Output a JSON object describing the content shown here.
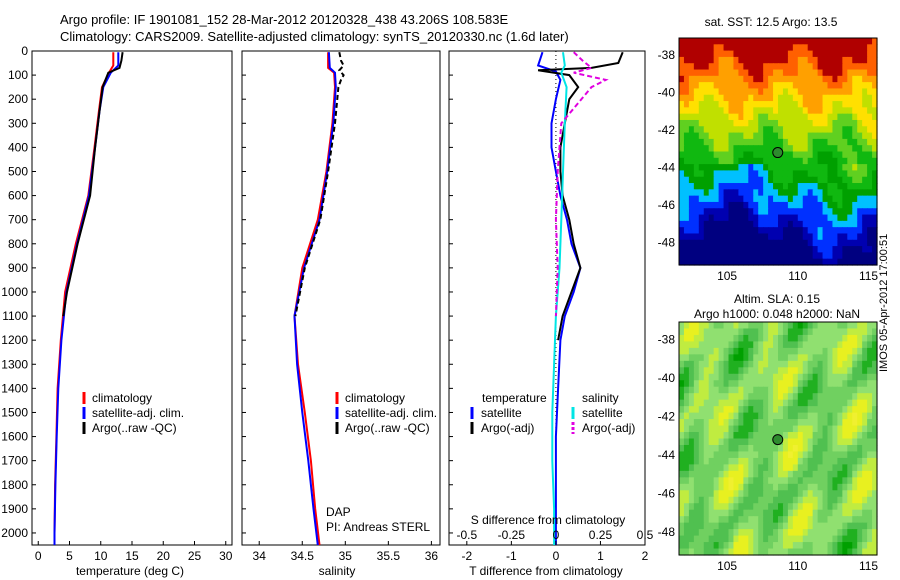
{
  "header": {
    "line1": "Argo profile: IF 1901081_152 28-Mar-2012 20120328_438 43.206S 108.583E",
    "line2": "Climatology: CARS2009. Satellite-adjusted climatology: synTS_20120330.nc (1.6d later)"
  },
  "colors": {
    "climatology": "#ff0000",
    "satellite": "#0000ff",
    "argo": "#000000",
    "s_satellite": "#00e5e5",
    "s_argo": "#e000e0"
  },
  "chart_data": [
    {
      "type": "line",
      "id": "temperature",
      "xlabel": "temperature (deg C)",
      "ylabel": "",
      "xlim": [
        -1,
        31
      ],
      "ylim": [
        2050,
        0
      ],
      "xticks": [
        "0",
        "5",
        "10",
        "15",
        "20",
        "25",
        "30"
      ],
      "xtick_values": [
        0,
        5,
        10,
        15,
        20,
        25,
        30
      ],
      "yticks": [
        "0",
        "100",
        "200",
        "300",
        "400",
        "500",
        "600",
        "700",
        "800",
        "900",
        "1000",
        "1100",
        "1200",
        "1300",
        "1400",
        "1500",
        "1600",
        "1700",
        "1800",
        "1900",
        "2000"
      ],
      "ytick_values": [
        0,
        100,
        200,
        300,
        400,
        500,
        600,
        700,
        800,
        900,
        1000,
        1100,
        1200,
        1300,
        1400,
        1500,
        1600,
        1700,
        1800,
        1900,
        2000
      ],
      "legend": [
        "climatology",
        "satellite-adj. clim.",
        "Argo(..raw -QC)"
      ],
      "series": [
        {
          "name": "climatology",
          "depth": [
            5,
            60,
            90,
            150,
            250,
            400,
            600,
            800,
            1000,
            1200,
            1400,
            1600,
            1800,
            2000,
            2050
          ],
          "values": [
            12.0,
            12.0,
            11.3,
            10.2,
            9.7,
            9.0,
            8.0,
            6.0,
            4.3,
            3.6,
            3.1,
            2.9,
            2.7,
            2.6,
            2.6
          ]
        },
        {
          "name": "satellite-adj. clim.",
          "depth": [
            5,
            60,
            90,
            150,
            250,
            400,
            600,
            800,
            1000,
            1200,
            1400,
            1600,
            1800,
            2000,
            2050
          ],
          "values": [
            12.8,
            12.8,
            11.6,
            10.4,
            9.8,
            9.1,
            8.1,
            6.2,
            4.5,
            3.7,
            3.2,
            2.95,
            2.75,
            2.6,
            2.6
          ]
        },
        {
          "name": "Argo(..raw -QC)",
          "depth": [
            5,
            40,
            70,
            90,
            150,
            250,
            400,
            600,
            800,
            1000,
            1100
          ],
          "values": [
            13.5,
            13.3,
            13.0,
            11.2,
            10.3,
            9.8,
            9.1,
            8.3,
            6.3,
            4.6,
            4.0
          ]
        }
      ]
    },
    {
      "type": "line",
      "id": "salinity",
      "xlabel": "salinity",
      "xlim": [
        33.8,
        36.1
      ],
      "ylim": [
        2050,
        0
      ],
      "xticks": [
        "34",
        "34.5",
        "35",
        "35.5",
        "36"
      ],
      "xtick_values": [
        34,
        34.5,
        35,
        35.5,
        36
      ],
      "legend": [
        "climatology",
        "satellite-adj. clim.",
        "Argo(..raw -QC)"
      ],
      "annotation": [
        "DAP",
        "PI: Andreas STERL"
      ],
      "series": [
        {
          "name": "climatology",
          "depth": [
            5,
            70,
            90,
            150,
            300,
            500,
            700,
            900,
            1100,
            1300,
            1500,
            1700,
            1900,
            2050
          ],
          "values": [
            34.8,
            34.8,
            34.87,
            34.88,
            34.85,
            34.78,
            34.68,
            34.5,
            34.41,
            34.45,
            34.53,
            34.6,
            34.65,
            34.7
          ]
        },
        {
          "name": "satellite-adj. clim.",
          "depth": [
            5,
            70,
            90,
            150,
            300,
            500,
            700,
            900,
            1100,
            1300,
            1500,
            1700,
            1900,
            2050
          ],
          "values": [
            34.81,
            34.82,
            34.88,
            34.89,
            34.86,
            34.79,
            34.7,
            34.52,
            34.41,
            34.44,
            34.5,
            34.57,
            34.63,
            34.68
          ]
        },
        {
          "name": "Argo(..raw -QC)",
          "depth": [
            5,
            40,
            60,
            80,
            100,
            120,
            150,
            300,
            500,
            700,
            900,
            1100
          ],
          "values": [
            34.93,
            34.95,
            34.98,
            34.93,
            34.98,
            34.95,
            34.92,
            34.88,
            34.8,
            34.71,
            34.53,
            34.42
          ]
        }
      ]
    },
    {
      "type": "line",
      "id": "difference",
      "xlabel": "T difference from climatology",
      "xlabel_top": "S difference from climatology",
      "xlim": [
        -2.4,
        2.0
      ],
      "ylim": [
        2050,
        0
      ],
      "xticks": [
        "-2",
        "-1",
        "0",
        "1",
        "2"
      ],
      "xtick_values": [
        -2,
        -1,
        0,
        1,
        2
      ],
      "sticks": [
        "-0.5",
        "-0.25",
        "0",
        "0.25",
        "0.5"
      ],
      "stick_values": [
        -0.5,
        -0.25,
        0,
        0.25,
        0.5
      ],
      "legend_titles": [
        "temperature",
        "salinity"
      ],
      "legend": [
        "satellite",
        "Argo(-adj)",
        "satellite",
        "Argo(-adj)"
      ],
      "series": [
        {
          "name": "T satellite",
          "depth": [
            5,
            60,
            85,
            120,
            200,
            300,
            400,
            500,
            600,
            700,
            800,
            900,
            1000,
            1100,
            1200,
            1400,
            1600,
            1800,
            2050
          ],
          "values": [
            -0.3,
            -0.4,
            0.0,
            0.1,
            0.0,
            -0.1,
            -0.1,
            0.0,
            0.1,
            0.25,
            0.35,
            0.55,
            0.4,
            0.2,
            0.1,
            0.05,
            0.0,
            0.0,
            0.0
          ]
        },
        {
          "name": "T Argo(-adj)",
          "depth": [
            5,
            50,
            70,
            80,
            100,
            150,
            200,
            300,
            400,
            500,
            600,
            700,
            800,
            900,
            1000,
            1100,
            1200
          ],
          "values": [
            1.5,
            1.4,
            0.8,
            -0.4,
            0.3,
            0.5,
            0.3,
            0.2,
            0.1,
            0.1,
            0.15,
            0.3,
            0.4,
            0.55,
            0.35,
            0.15,
            0.05
          ]
        },
        {
          "name": "S satellite",
          "depth": [
            5,
            60,
            90,
            150,
            300,
            500,
            700,
            900,
            1100,
            1300,
            1500,
            1700,
            1900,
            2050
          ],
          "values": [
            0.04,
            0.05,
            0.03,
            0.06,
            0.05,
            0.04,
            0.03,
            0.02,
            0.0,
            -0.01,
            -0.02,
            -0.02,
            -0.01,
            -0.01
          ]
        },
        {
          "name": "S Argo(-adj)",
          "depth": [
            5,
            40,
            70,
            90,
            120,
            150,
            300,
            500,
            700,
            900,
            1100
          ],
          "values": [
            0.1,
            0.15,
            0.2,
            0.1,
            0.28,
            0.2,
            0.03,
            0.01,
            0.0,
            0.01,
            0.0
          ]
        }
      ]
    },
    {
      "type": "heatmap",
      "id": "sst_map",
      "title": "sat. SST: 12.5  Argo: 13.5",
      "xticks": [
        "105",
        "110",
        "115"
      ],
      "xtick_values": [
        105,
        110,
        115
      ],
      "yticks": [
        "-38",
        "-40",
        "-42",
        "-44",
        "-46",
        "-48"
      ],
      "ytick_values": [
        -38,
        -40,
        -42,
        -44,
        -46,
        -48
      ],
      "xlim": [
        101.6,
        115.6
      ],
      "ylim": [
        -49.2,
        -37.1
      ],
      "argo_position": [
        108.583,
        -43.206
      ]
    },
    {
      "type": "heatmap",
      "id": "sla_map",
      "title": "Altim. SLA: 0.15",
      "subtitle": "Argo h1000: 0.048 h2000: NaN",
      "xticks": [
        "105",
        "110",
        "115"
      ],
      "xtick_values": [
        105,
        110,
        115
      ],
      "yticks": [
        "-38",
        "-40",
        "-42",
        "-44",
        "-46",
        "-48"
      ],
      "ytick_values": [
        -38,
        -40,
        -42,
        -44,
        -46,
        -48
      ],
      "xlim": [
        101.6,
        115.6
      ],
      "ylim": [
        -49.2,
        -37.1
      ],
      "argo_position": [
        108.583,
        -43.206
      ]
    }
  ],
  "footer": {
    "stamp": "IMOS 05-Apr-2012 17:00:51"
  }
}
